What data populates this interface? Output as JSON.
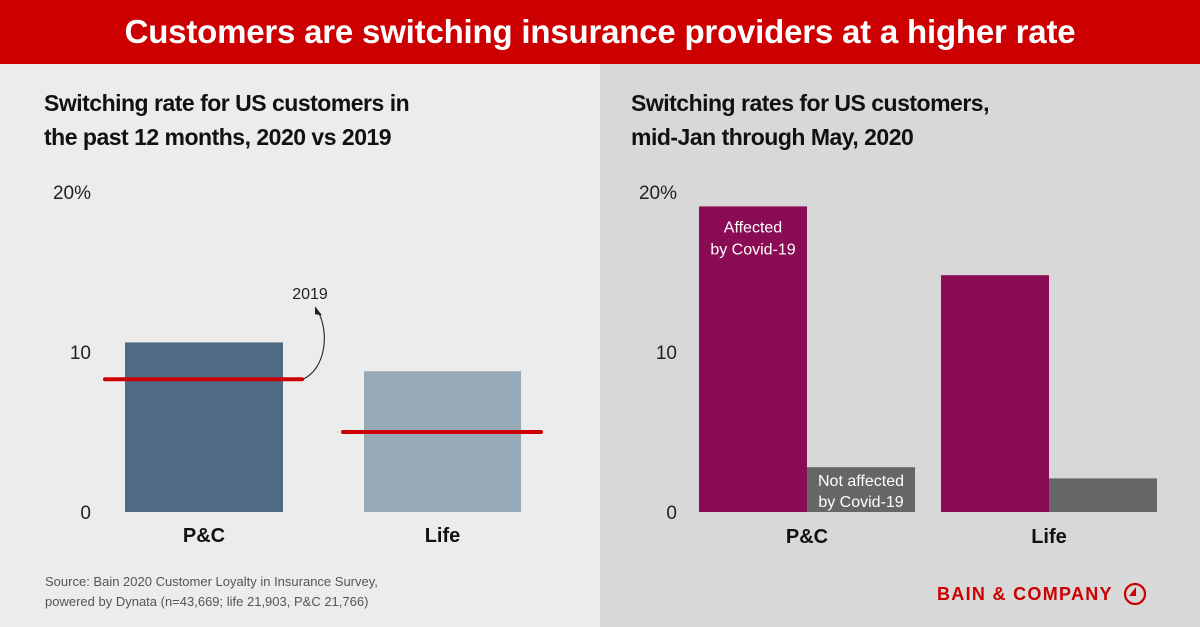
{
  "header": {
    "title": "Customers are switching insurance providers at a higher rate"
  },
  "colors": {
    "brand_red": "#cc0000",
    "pc_2020": "#506b84",
    "life_2020": "#97a8b6",
    "line_2019": "#cc0000",
    "affected": "#8a0c55",
    "not_affected": "#666666"
  },
  "left_panel": {
    "title_line1": "Switching rate for US customers in",
    "title_line2": "the past 12 months, 2020 vs 2019",
    "source_line1": "Source: Bain 2020 Customer Loyalty in Insurance Survey,",
    "source_line2": "powered by Dynata (n=43,669; life 21,903, P&C 21,766)"
  },
  "right_panel": {
    "title_line1": "Switching rates for US customers,",
    "title_line2": "mid-Jan through May, 2020",
    "logo_text": "BAIN & COMPANY"
  },
  "chart_data": [
    {
      "type": "bar",
      "title": "Switching rate for US customers in the past 12 months, 2020 vs 2019",
      "categories": [
        "P&C",
        "Life"
      ],
      "series": [
        {
          "name": "2020",
          "values": [
            10.6,
            8.8
          ]
        },
        {
          "name": "2019",
          "values": [
            8.3,
            5.0
          ],
          "style": "reference-line"
        }
      ],
      "annotations": [
        {
          "text": "2019",
          "target": "P&C 2019 line"
        }
      ],
      "yticks": [
        "0",
        "10",
        "20%"
      ],
      "ytick_values": [
        0,
        10,
        20
      ],
      "ylim": [
        0,
        20
      ],
      "xlabel": "",
      "ylabel": "",
      "grid": false
    },
    {
      "type": "bar",
      "title": "Switching rates for US customers, mid-Jan through May, 2020",
      "categories": [
        "P&C",
        "Life"
      ],
      "series": [
        {
          "name": "Affected by Covid-19",
          "label_line1": "Affected",
          "label_line2": "by Covid-19",
          "values": [
            19.1,
            14.8
          ]
        },
        {
          "name": "Not affected by Covid-19",
          "label_line1": "Not affected",
          "label_line2": "by Covid-19",
          "values": [
            2.8,
            2.1
          ]
        }
      ],
      "yticks": [
        "0",
        "10",
        "20%"
      ],
      "ytick_values": [
        0,
        10,
        20
      ],
      "ylim": [
        0,
        20
      ],
      "xlabel": "",
      "ylabel": "",
      "grid": false
    }
  ]
}
